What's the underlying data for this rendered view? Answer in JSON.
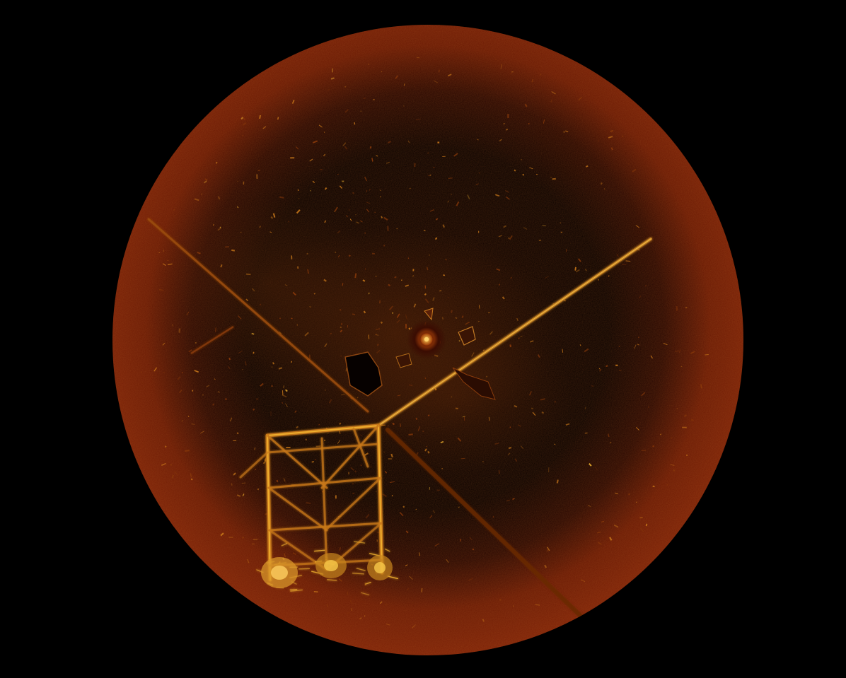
{
  "image": {
    "kind": "sonar-scan",
    "palette": {
      "background": "#000000",
      "rim": "#7a1e06",
      "rim_dark": "#4a1003",
      "inner_dark": "#0a0100",
      "echo_dim": "#8a3a0a",
      "echo_mid": "#c8781a",
      "echo_bright": "#f2b430",
      "echo_hot": "#ffd860"
    }
  }
}
